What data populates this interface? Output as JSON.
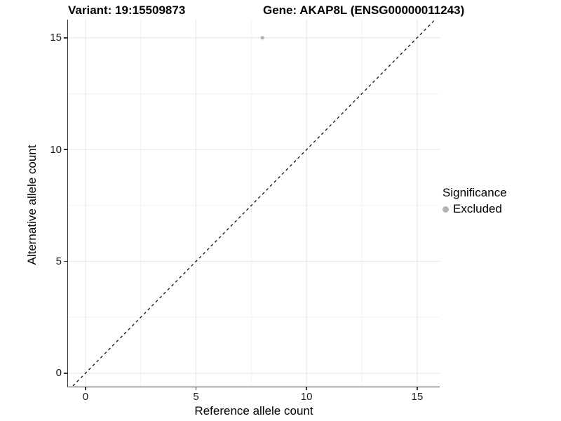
{
  "header": {
    "variant_title": "Variant: 19:15509873",
    "gene_title": "Gene: AKAP8L (ENSG00000011243)"
  },
  "chart_data": {
    "type": "scatter",
    "title": "Variant: 19:15509873   Gene: AKAP8L (ENSG00000011243)",
    "xlabel": "Reference allele count",
    "ylabel": "Alternative allele count",
    "xlim": [
      -0.79,
      16.02
    ],
    "ylim": [
      -0.57,
      15.81
    ],
    "x_ticks": [
      0,
      5,
      10,
      15
    ],
    "y_ticks": [
      0,
      5,
      10,
      15
    ],
    "x_minor_ticks": [
      2.5,
      7.5,
      12.5
    ],
    "y_minor_ticks": [
      2.5,
      7.5,
      12.5
    ],
    "grid": true,
    "points": [
      {
        "x": 8,
        "y": 15,
        "significance": "Excluded"
      }
    ],
    "reference_line": {
      "slope": 1,
      "intercept": 0,
      "style": "dashed",
      "color": "#000000"
    },
    "legend": {
      "title": "Significance",
      "position": "right",
      "entries": [
        {
          "label": "Excluded",
          "color": "#b3b3b3"
        }
      ]
    },
    "colors": {
      "background": "#ffffff",
      "grid_major": "#e4e4e4",
      "grid_minor": "#f1f1f1",
      "axis_line": "#333333",
      "point": "#b3b3b3",
      "text": "#000000"
    }
  }
}
